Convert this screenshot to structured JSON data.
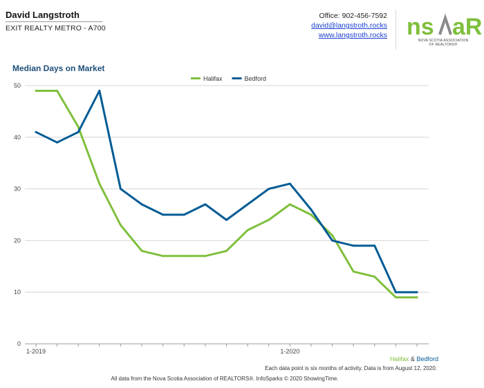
{
  "agent": {
    "name": "David Langstroth",
    "office": "EXIT REALTY METRO - A700"
  },
  "contact": {
    "phone": "Office: 902-456-7592",
    "email": "david@langstroth.rocks",
    "website": "www.langstroth.rocks"
  },
  "logo": {
    "wordmark": "nsAR",
    "subtitle_line1": "NOVA SCOTIA ASSOCIATION",
    "subtitle_line2": "OF REALTORS®",
    "colors": {
      "green": "#7fbf3c",
      "gray": "#8a8a8a"
    }
  },
  "footer": {
    "legend_halifax": "Halifax",
    "legend_sep": " & ",
    "legend_bedford": "Bedford",
    "note": "Each data point is six months of activity. Data is from August 12, 2020.",
    "source": "All data from the Nova Scotia Association of REALTORS®. InfoSparks © 2020 ShowingTime."
  },
  "chart_data": {
    "type": "line",
    "title": "Median Days on Market",
    "xlabel": "",
    "ylabel": "",
    "x": [
      "2019-01",
      "2019-02",
      "2019-03",
      "2019-04",
      "2019-05",
      "2019-06",
      "2019-07",
      "2019-08",
      "2019-09",
      "2019-10",
      "2019-11",
      "2019-12",
      "2020-01",
      "2020-02",
      "2020-03",
      "2020-04",
      "2020-05",
      "2020-06",
      "2020-07"
    ],
    "x_tick_labels": [
      {
        "at": "2019-01",
        "label": "1-2019"
      },
      {
        "at": "2020-01",
        "label": "1-2020"
      }
    ],
    "y_ticks": [
      0,
      10,
      20,
      30,
      40,
      50
    ],
    "ylim": [
      0,
      50
    ],
    "grid": true,
    "legend_position": "top-center",
    "series": [
      {
        "name": "Halifax",
        "color": "#7fbf3c",
        "values": [
          49,
          49,
          42,
          31,
          23,
          18,
          17,
          17,
          17,
          18,
          22,
          24,
          27,
          25,
          21,
          14,
          13,
          9,
          9
        ]
      },
      {
        "name": "Bedford",
        "color": "#005b94",
        "values": [
          41,
          39,
          41,
          49,
          30,
          27,
          25,
          25,
          27,
          24,
          27,
          30,
          31,
          26,
          20,
          19,
          19,
          10,
          10
        ]
      }
    ]
  }
}
